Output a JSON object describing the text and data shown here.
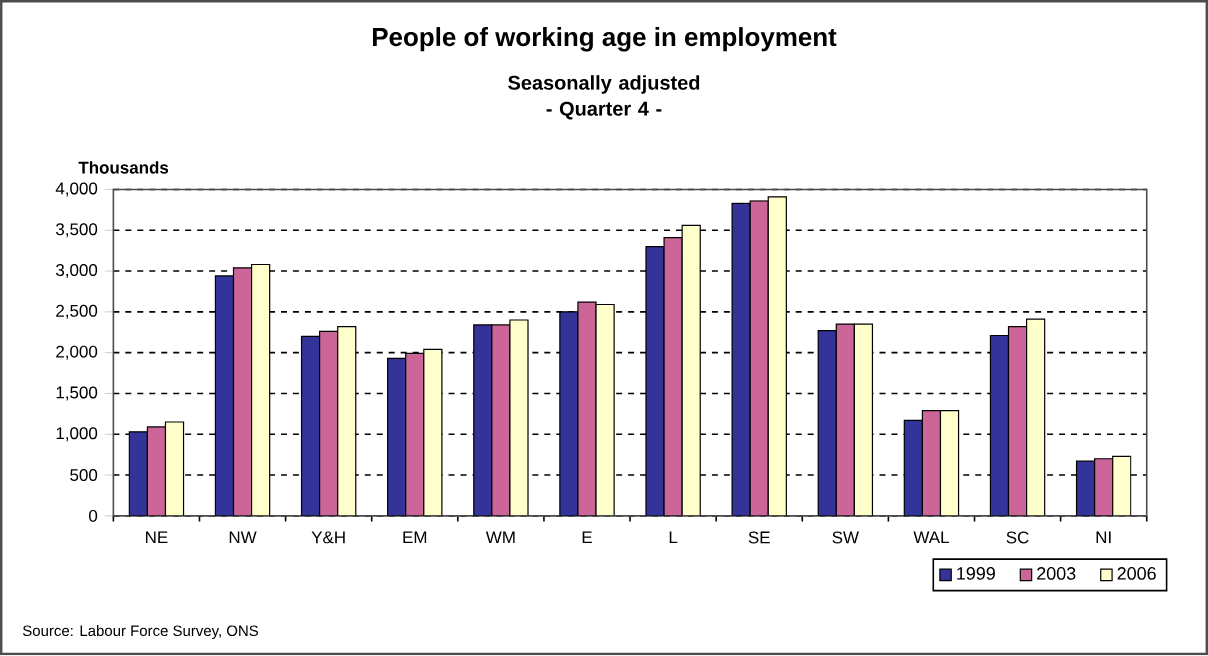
{
  "chart_data": {
    "type": "bar",
    "title": "People of working age in employment",
    "subtitle": "Seasonally adjusted\n- Quarter 4 -",
    "ylabel": "Thousands",
    "categories": [
      "NE",
      "NW",
      "Y&H",
      "EM",
      "WM",
      "E",
      "L",
      "SE",
      "SW",
      "WAL",
      "SC",
      "NI"
    ],
    "series": [
      {
        "name": "1999",
        "color": "#333399",
        "values": [
          1030,
          2940,
          2200,
          1930,
          2340,
          2500,
          3300,
          3830,
          2270,
          1170,
          2210,
          670
        ]
      },
      {
        "name": "2003",
        "color": "#cc6699",
        "values": [
          1090,
          3040,
          2260,
          1990,
          2340,
          2620,
          3410,
          3860,
          2350,
          1290,
          2320,
          700
        ]
      },
      {
        "name": "2006",
        "color": "#ffffcc",
        "values": [
          1150,
          3080,
          2320,
          2040,
          2400,
          2590,
          3560,
          3910,
          2350,
          1290,
          2410,
          730
        ]
      }
    ],
    "ylim": [
      0,
      4000
    ],
    "yticks": [
      0,
      500,
      {
        "value": 1000,
        "label": "1,000"
      },
      {
        "value": 1500,
        "label": "1,500"
      },
      {
        "value": 2000,
        "label": "2,000"
      },
      {
        "value": 2500,
        "label": "2,500"
      },
      {
        "value": 3000,
        "label": "3,000"
      },
      {
        "value": 3500,
        "label": "3,500"
      },
      {
        "value": 4000,
        "label": "4,000"
      }
    ],
    "grid": "y",
    "legend": "bottom right",
    "annotations": [
      "Source: Labour Force Survey, ONS"
    ]
  }
}
